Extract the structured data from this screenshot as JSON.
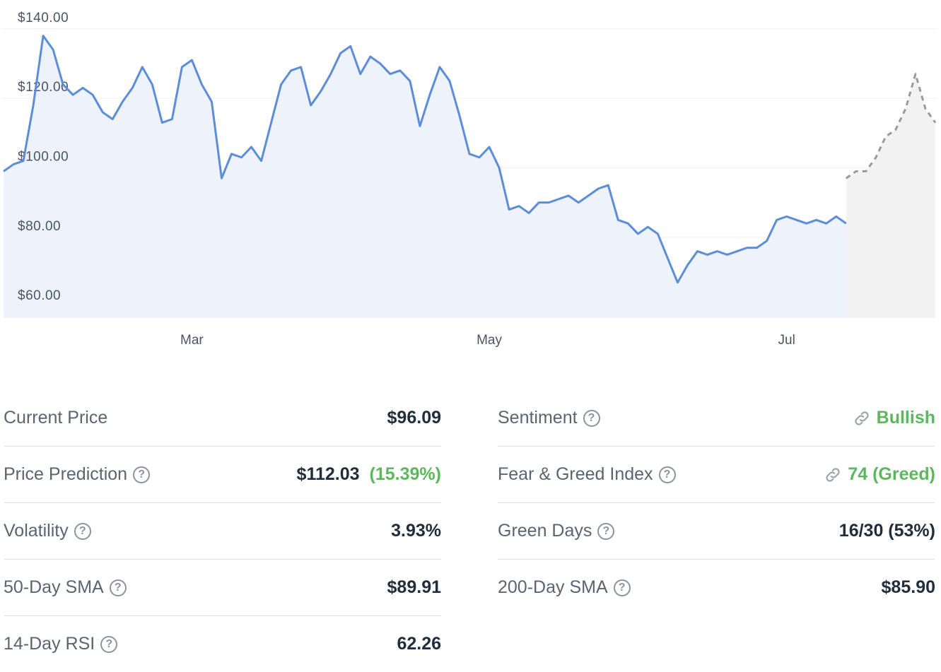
{
  "chart_data": {
    "type": "line",
    "x_tick_labels": [
      "Mar",
      "May",
      "Jul"
    ],
    "y_tick_labels": [
      "$140.00",
      "$120.00",
      "$100.00",
      "$80.00",
      "$60.00"
    ],
    "y_ticks": [
      140,
      120,
      100,
      80,
      60
    ],
    "ylim": [
      57,
      143
    ],
    "grid": true,
    "series": [
      {
        "role": "historical",
        "style": "solid",
        "color": "#5b8dd9",
        "fill": "#edf2fb",
        "x": [
          0,
          2,
          4,
          6,
          8,
          10,
          12,
          14,
          16,
          18,
          20,
          22,
          24,
          26,
          28,
          30,
          32,
          34,
          36,
          38,
          40,
          42,
          44,
          46,
          48,
          50,
          52,
          54,
          56,
          58,
          60,
          62,
          64,
          66,
          68,
          70,
          72,
          74,
          76,
          78,
          80,
          82,
          84,
          86,
          88,
          90,
          92,
          94,
          96,
          98,
          100,
          102,
          104,
          106,
          108,
          110,
          112,
          114,
          116,
          118,
          120,
          122,
          124,
          126,
          128,
          130,
          132,
          134,
          136,
          138,
          140,
          142,
          144,
          146,
          148,
          150,
          152,
          154,
          156,
          158,
          160,
          162,
          164,
          166,
          168,
          170
        ],
        "values": [
          99,
          101,
          102,
          118,
          138,
          134,
          124,
          121,
          123,
          121,
          116,
          114,
          119,
          123,
          129,
          124,
          113,
          114,
          129,
          131,
          124,
          119,
          97,
          104,
          103,
          106,
          102,
          113,
          124,
          128,
          129,
          118,
          122,
          127,
          133,
          135,
          127,
          132,
          130,
          127,
          128,
          125,
          112,
          121,
          129,
          125,
          115,
          104,
          103,
          106,
          100,
          88,
          89,
          87,
          90,
          90,
          91,
          92,
          90,
          92,
          94,
          95,
          85,
          84,
          81,
          83,
          81,
          74,
          67,
          72,
          76,
          75,
          76,
          75,
          76,
          77,
          77,
          79,
          85,
          86,
          85,
          84,
          85,
          84,
          86,
          84
        ],
        "note": "values span ~Jan 20 to ~Jul 20; Mar at x=~38, May at x=~98, Jul at x=~158"
      },
      {
        "role": "predicted",
        "style": "dashed",
        "color": "#9a9a9a",
        "fill": "#f2f2f2",
        "x": [
          170,
          172,
          174,
          176,
          178,
          180,
          182,
          184,
          186,
          188
        ],
        "values": [
          97,
          99,
          99,
          103,
          109,
          111,
          117,
          127,
          117,
          113
        ]
      }
    ]
  },
  "stats": {
    "left": [
      {
        "label": "Current Price",
        "help": false,
        "value": "$96.09"
      },
      {
        "label": "Price Prediction",
        "help": true,
        "value": "$112.03",
        "pct": "(15.39%)"
      },
      {
        "label": "Volatility",
        "help": true,
        "value": "3.93%"
      },
      {
        "label": "50-Day SMA",
        "help": true,
        "value": "$89.91"
      },
      {
        "label": "14-Day RSI",
        "help": true,
        "value": "62.26"
      }
    ],
    "right": [
      {
        "label": "Sentiment",
        "help": true,
        "value": "Bullish",
        "green": true,
        "link": true
      },
      {
        "label": "Fear & Greed Index",
        "help": true,
        "value": "74 (Greed)",
        "green": true,
        "link": true
      },
      {
        "label": "Green Days",
        "help": true,
        "value": "16/30 (53%)"
      },
      {
        "label": "200-Day SMA",
        "help": true,
        "value": "$85.90"
      }
    ]
  },
  "help_glyph": "?",
  "icons": {
    "help": "question-circle-icon",
    "link": "link-icon"
  },
  "colors": {
    "accent": "#5b8dd9",
    "positive": "#5cb85c",
    "text": "#1f2d3d",
    "muted": "#5a6573",
    "divider": "#dde1e6"
  }
}
